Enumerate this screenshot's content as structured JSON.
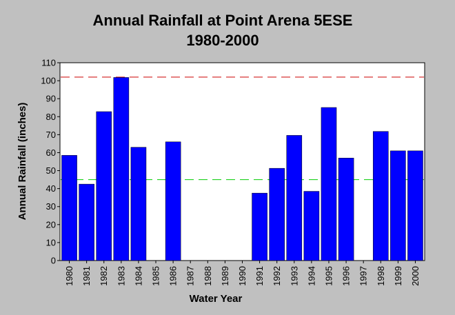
{
  "chart_data": {
    "type": "bar",
    "title": "Annual Rainfall at Point Arena 5ESE",
    "subtitle": "1980-2000",
    "xlabel": "Water Year",
    "ylabel": "Annual Rainfall (inches)",
    "ylim": [
      0,
      110
    ],
    "yticks": [
      0,
      10,
      20,
      30,
      40,
      50,
      60,
      70,
      80,
      90,
      100,
      110
    ],
    "grid": false,
    "categories": [
      "1980",
      "1981",
      "1982",
      "1983",
      "1984",
      "1985",
      "1986",
      "1987",
      "1988",
      "1989",
      "1990",
      "1991",
      "1992",
      "1993",
      "1994",
      "1995",
      "1996",
      "1997",
      "1998",
      "1999",
      "2000"
    ],
    "series": [
      {
        "values": [
          58.5,
          42.5,
          82.8,
          101.8,
          63.0,
          null,
          66.0,
          null,
          null,
          null,
          null,
          37.5,
          51.3,
          69.6,
          38.5,
          85.1,
          57.0,
          null,
          71.8,
          61.0,
          61.0
        ],
        "color": "#0000ff"
      }
    ],
    "reference_lines": [
      {
        "value": 102,
        "color": "#cc0000",
        "style": "dashed"
      },
      {
        "value": 45,
        "color": "#00cc00",
        "style": "dashed"
      }
    ],
    "colors": {
      "background": "#c0c0c0",
      "plot_background": "#ffffff"
    }
  }
}
